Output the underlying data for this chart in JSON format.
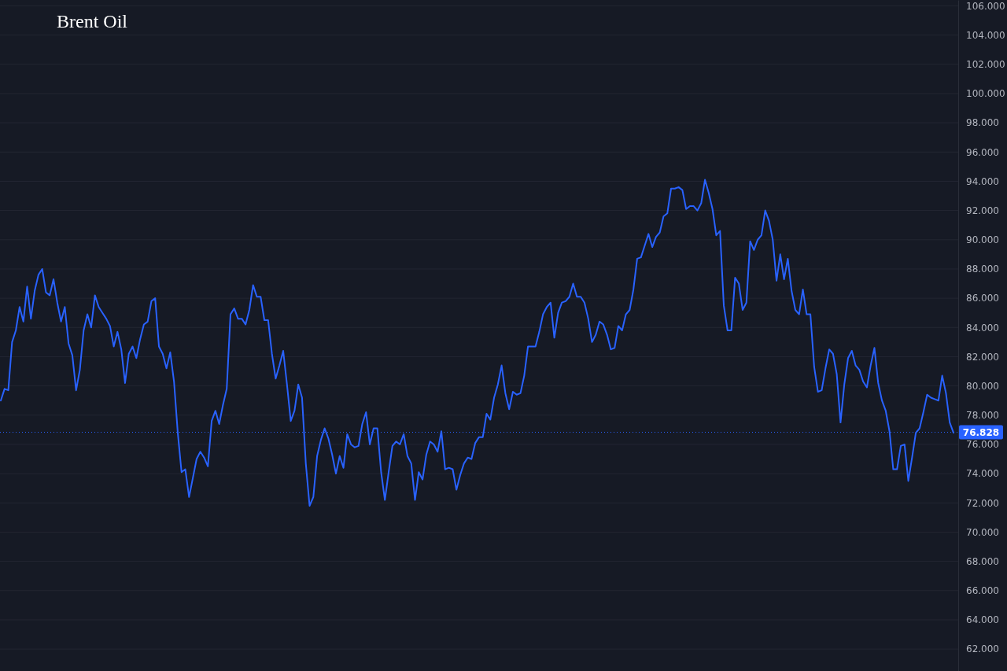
{
  "chart_data": {
    "type": "line",
    "title": "Brent Oil",
    "categories": [
      null,
      null,
      null,
      null,
      null,
      null,
      null,
      null,
      null,
      null,
      null,
      null,
      null,
      null,
      null,
      null,
      null,
      null,
      null,
      null,
      null,
      null,
      null,
      null,
      null,
      null,
      null,
      null,
      null,
      null,
      null,
      null,
      null,
      null,
      null,
      null,
      null,
      null,
      null,
      null,
      null,
      null,
      null,
      null,
      null,
      null,
      null,
      null,
      null,
      null,
      null,
      null,
      null,
      null,
      null,
      null,
      null,
      null,
      null,
      null,
      null,
      null,
      null,
      null,
      null,
      null,
      null,
      null,
      null,
      null,
      null,
      null,
      null,
      null,
      null,
      null,
      null,
      null,
      null,
      null,
      null,
      null,
      null,
      null,
      null,
      null,
      null,
      null,
      null,
      null,
      null,
      null,
      null,
      null,
      null,
      null,
      null,
      null,
      null,
      null,
      null,
      null,
      null,
      null,
      null,
      null,
      null,
      null,
      null,
      null,
      null,
      null,
      null,
      null,
      null,
      null,
      null,
      null,
      null,
      null,
      null,
      null,
      null,
      null,
      null,
      null,
      null,
      null,
      null,
      null,
      null,
      null,
      null,
      null,
      null,
      null,
      null,
      null,
      null,
      null,
      null,
      null,
      null,
      null,
      null,
      null,
      null,
      null,
      null,
      null,
      null,
      null,
      null,
      null,
      null,
      null,
      null,
      null,
      null,
      null,
      null,
      null,
      null,
      null,
      null,
      null,
      null,
      null,
      null,
      null,
      null,
      null,
      null,
      null,
      null,
      null,
      null,
      null,
      null,
      null,
      null,
      null,
      null,
      null,
      null,
      null,
      null,
      null,
      null,
      null,
      null,
      null,
      null,
      null,
      null,
      null,
      null,
      null,
      null,
      null,
      null,
      null,
      null,
      null,
      null,
      null,
      null,
      null,
      null,
      null,
      null,
      null,
      null,
      null,
      null,
      null,
      null,
      null,
      null,
      null,
      null,
      null,
      null,
      null,
      null,
      null,
      null,
      null,
      null,
      null,
      null,
      null,
      null,
      null,
      null,
      null,
      null,
      null,
      null,
      null,
      null,
      null,
      null,
      null,
      null,
      null,
      null,
      null,
      null,
      null,
      null,
      null,
      null,
      null
    ],
    "series": [
      {
        "color": "#2962ff",
        "values": [
          79.0,
          79.8,
          79.7,
          83.0,
          83.8,
          85.4,
          84.4,
          86.8,
          84.6,
          86.5,
          87.6,
          88.0,
          86.4,
          86.2,
          87.3,
          85.7,
          84.4,
          85.4,
          82.9,
          82.1,
          79.7,
          81.1,
          83.8,
          84.9,
          84.0,
          86.2,
          85.4,
          85.0,
          84.6,
          84.1,
          82.7,
          83.7,
          82.5,
          80.2,
          82.2,
          82.7,
          81.9,
          83.2,
          84.2,
          84.4,
          85.8,
          86.0,
          82.7,
          82.2,
          81.2,
          82.3,
          80.3,
          76.8,
          74.1,
          74.3,
          72.4,
          73.7,
          75.0,
          75.5,
          75.1,
          74.5,
          77.6,
          78.3,
          77.4,
          78.7,
          79.8,
          84.9,
          85.3,
          84.6,
          84.6,
          84.2,
          85.2,
          86.9,
          86.1,
          86.1,
          84.5,
          84.5,
          82.2,
          80.5,
          81.4,
          82.4,
          80.1,
          77.6,
          78.3,
          80.1,
          79.2,
          74.7,
          71.8,
          72.4,
          75.2,
          76.3,
          77.1,
          76.4,
          75.3,
          74.0,
          75.2,
          74.4,
          76.7,
          76.0,
          75.8,
          75.9,
          77.4,
          78.2,
          76.0,
          77.1,
          77.1,
          74.1,
          72.2,
          74.1,
          75.9,
          76.2,
          76.0,
          76.7,
          75.2,
          74.7,
          72.2,
          74.1,
          73.6,
          75.3,
          76.2,
          76.0,
          75.5,
          76.9,
          74.3,
          74.4,
          74.3,
          72.9,
          73.9,
          74.7,
          75.1,
          75.0,
          76.1,
          76.5,
          76.5,
          78.1,
          77.7,
          79.2,
          80.1,
          81.4,
          79.5,
          78.4,
          79.6,
          79.4,
          79.5,
          80.7,
          82.7,
          82.7,
          82.7,
          83.7,
          84.9,
          85.4,
          85.7,
          83.3,
          85.0,
          85.7,
          85.8,
          86.1,
          87.0,
          86.1,
          86.1,
          85.7,
          84.6,
          83.0,
          83.5,
          84.4,
          84.2,
          83.5,
          82.5,
          82.6,
          84.1,
          83.8,
          84.9,
          85.2,
          86.6,
          88.7,
          88.8,
          89.6,
          90.4,
          89.5,
          90.2,
          90.5,
          91.6,
          91.8,
          93.5,
          93.5,
          93.6,
          93.4,
          92.1,
          92.3,
          92.3,
          92.0,
          92.5,
          94.1,
          93.2,
          92.1,
          90.3,
          90.6,
          85.5,
          83.8,
          83.8,
          87.4,
          87.0,
          85.2,
          85.7,
          89.9,
          89.3,
          90.0,
          90.3,
          92.0,
          91.3,
          90.0,
          87.2,
          89.0,
          87.3,
          88.7,
          86.5,
          85.2,
          84.9,
          86.6,
          84.9,
          84.9,
          81.3,
          79.6,
          79.7,
          81.2,
          82.5,
          82.2,
          80.8,
          77.5,
          80.1,
          81.9,
          82.4,
          81.4,
          81.1,
          80.3,
          79.9,
          81.4,
          82.6,
          80.2,
          79.0,
          78.3,
          76.9,
          74.3,
          74.3,
          75.9,
          76.0,
          73.5,
          75.1,
          76.8,
          77.1,
          78.2,
          79.4,
          79.2,
          79.1,
          79.0,
          80.7,
          79.5,
          77.5,
          76.8
        ]
      }
    ],
    "ylim": [
      60.5,
      106.4
    ],
    "yticks": [
      {
        "value": 62,
        "label": "62.000"
      },
      {
        "value": 64,
        "label": "64.000"
      },
      {
        "value": 66,
        "label": "66.000"
      },
      {
        "value": 68,
        "label": "68.000"
      },
      {
        "value": 70,
        "label": "70.000"
      },
      {
        "value": 72,
        "label": "72.000"
      },
      {
        "value": 74,
        "label": "74.000"
      },
      {
        "value": 76,
        "label": "76.000"
      },
      {
        "value": 78,
        "label": "78.000"
      },
      {
        "value": 80,
        "label": "80.000"
      },
      {
        "value": 82,
        "label": "82.000"
      },
      {
        "value": 84,
        "label": "84.000"
      },
      {
        "value": 86,
        "label": "86.000"
      },
      {
        "value": 88,
        "label": "88.000"
      },
      {
        "value": 90,
        "label": "90.000"
      },
      {
        "value": 92,
        "label": "92.000"
      },
      {
        "value": 94,
        "label": "94.000"
      },
      {
        "value": 96,
        "label": "96.000"
      },
      {
        "value": 98,
        "label": "98.000"
      },
      {
        "value": 100,
        "label": "100.000"
      },
      {
        "value": 102,
        "label": "102.000"
      },
      {
        "value": 104,
        "label": "104.000"
      },
      {
        "value": 106,
        "label": "106.000"
      }
    ],
    "tick_labels": "y",
    "grid": "y",
    "ref_lines": [
      {
        "axis": "y",
        "value": 76.828,
        "label": "76.828",
        "color": "#2962ff",
        "line_style": "dotted"
      }
    ]
  }
}
